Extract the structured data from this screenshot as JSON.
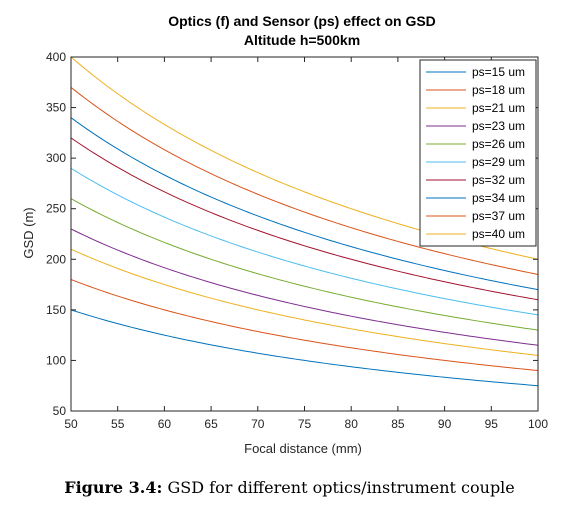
{
  "chart_data": {
    "type": "line",
    "title": "Optics (f) and Sensor (ps) effect on GSD",
    "subtitle": "Altitude h=500km",
    "xlabel": "Focal distance (mm)",
    "ylabel": "GSD (m)",
    "xlim": [
      50,
      100
    ],
    "ylim": [
      50,
      400
    ],
    "xticks": [
      50,
      55,
      60,
      65,
      70,
      75,
      80,
      85,
      90,
      95,
      100
    ],
    "yticks": [
      50,
      100,
      150,
      200,
      250,
      300,
      350,
      400
    ],
    "grid": false,
    "legend_position": "top-right",
    "altitude_m": 500000,
    "x": [
      50,
      55,
      60,
      65,
      70,
      75,
      80,
      85,
      90,
      95,
      100
    ],
    "series": [
      {
        "name": "ps=15 um",
        "pixel_size_um": 15,
        "color": "#0072BD",
        "values": [
          150,
          136.4,
          125,
          115.4,
          107.1,
          100,
          93.8,
          88.2,
          83.3,
          78.9,
          75
        ]
      },
      {
        "name": "ps=18 um",
        "pixel_size_um": 18,
        "color": "#D95319",
        "values": [
          180,
          163.6,
          150,
          138.5,
          128.6,
          120,
          112.5,
          105.9,
          100,
          94.7,
          90
        ]
      },
      {
        "name": "ps=21 um",
        "pixel_size_um": 21,
        "color": "#EDB120",
        "values": [
          210,
          190.9,
          175,
          161.5,
          150,
          140,
          131.3,
          123.5,
          116.7,
          110.5,
          105
        ]
      },
      {
        "name": "ps=23 um",
        "pixel_size_um": 23,
        "color": "#7E2F8E",
        "values": [
          230,
          209.1,
          191.7,
          176.9,
          164.3,
          153.3,
          143.8,
          135.3,
          127.8,
          121.1,
          115
        ]
      },
      {
        "name": "ps=26 um",
        "pixel_size_um": 26,
        "color": "#77AC30",
        "values": [
          260,
          236.4,
          216.7,
          200,
          185.7,
          173.3,
          162.5,
          152.9,
          144.4,
          136.8,
          130
        ]
      },
      {
        "name": "ps=29 um",
        "pixel_size_um": 29,
        "color": "#4DBEEE",
        "values": [
          290,
          263.6,
          241.7,
          223.1,
          207.1,
          193.3,
          181.3,
          170.6,
          161.1,
          152.6,
          145
        ]
      },
      {
        "name": "ps=32 um",
        "pixel_size_um": 32,
        "color": "#A2142F",
        "values": [
          320,
          290.9,
          266.7,
          246.2,
          228.6,
          213.3,
          200,
          188.2,
          177.8,
          168.4,
          160
        ]
      },
      {
        "name": "ps=34 um",
        "pixel_size_um": 34,
        "color": "#0072BD",
        "values": [
          340,
          309.1,
          283.3,
          261.5,
          242.9,
          226.7,
          212.5,
          200,
          188.9,
          178.9,
          170
        ]
      },
      {
        "name": "ps=37 um",
        "pixel_size_um": 37,
        "color": "#D95319",
        "values": [
          370,
          336.4,
          308.3,
          284.6,
          264.3,
          246.7,
          231.3,
          217.6,
          205.6,
          194.7,
          185
        ]
      },
      {
        "name": "ps=40 um",
        "pixel_size_um": 40,
        "color": "#EDB120",
        "values": [
          400,
          363.6,
          333.3,
          307.7,
          285.7,
          266.7,
          250,
          235.3,
          222.2,
          210.5,
          200
        ]
      }
    ]
  },
  "caption": {
    "label": "Figure 3.4:",
    "text": "GSD for different optics/instrument couple"
  }
}
